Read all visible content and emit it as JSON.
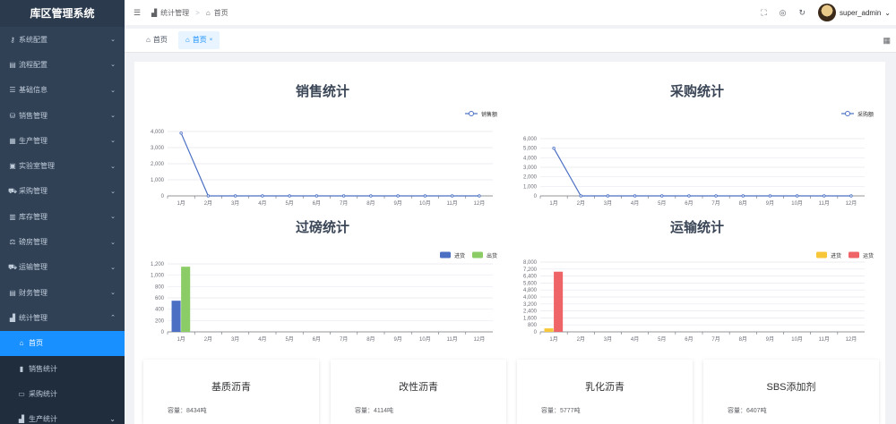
{
  "app_title": "库区管理系统",
  "sidebar": {
    "items": [
      {
        "label": "系统配置",
        "icon": "key-icon"
      },
      {
        "label": "流程配置",
        "icon": "form-icon"
      },
      {
        "label": "基础信息",
        "icon": "list-icon"
      },
      {
        "label": "销售管理",
        "icon": "cart-icon"
      },
      {
        "label": "生产管理",
        "icon": "factory-icon"
      },
      {
        "label": "实验室管理",
        "icon": "flask-icon"
      },
      {
        "label": "采购管理",
        "icon": "shopping-icon"
      },
      {
        "label": "库存管理",
        "icon": "warehouse-icon"
      },
      {
        "label": "磅房管理",
        "icon": "scale-icon"
      },
      {
        "label": "运输管理",
        "icon": "truck-icon"
      },
      {
        "label": "财务管理",
        "icon": "money-icon"
      },
      {
        "label": "统计管理",
        "icon": "chart-icon"
      }
    ],
    "sub_items": [
      {
        "label": "首页",
        "icon": "home-icon"
      },
      {
        "label": "销售统计",
        "icon": "bar-chart-icon"
      },
      {
        "label": "采购统计",
        "icon": "monitor-icon"
      },
      {
        "label": "生产统计",
        "icon": "chart-icon"
      }
    ]
  },
  "navbar": {
    "breadcrumb": [
      "统计管理",
      "首页"
    ],
    "username": "super_admin"
  },
  "tags": [
    "首页",
    "首页"
  ],
  "months": [
    "1月",
    "2月",
    "3月",
    "4月",
    "5月",
    "6月",
    "7月",
    "8月",
    "9月",
    "10月",
    "11月",
    "12月"
  ],
  "chart_data": [
    {
      "type": "line",
      "title": "销售统计",
      "categories": [
        "1月",
        "2月",
        "3月",
        "4月",
        "5月",
        "6月",
        "7月",
        "8月",
        "9月",
        "10月",
        "11月",
        "12月"
      ],
      "series": [
        {
          "name": "销售额",
          "values": [
            3900,
            0,
            0,
            0,
            0,
            0,
            0,
            0,
            0,
            0,
            0,
            0
          ],
          "color": "#4a6fc3"
        }
      ],
      "yticks": [
        "0",
        "1,000",
        "2,000",
        "3,000",
        "4,000"
      ],
      "ylim": [
        0,
        4000
      ],
      "legend": "top-right"
    },
    {
      "type": "line",
      "title": "采购统计",
      "categories": [
        "1月",
        "2月",
        "3月",
        "4月",
        "5月",
        "6月",
        "7月",
        "8月",
        "9月",
        "10月",
        "11月",
        "12月"
      ],
      "series": [
        {
          "name": "采购额",
          "values": [
            5000,
            0,
            0,
            0,
            0,
            0,
            0,
            0,
            0,
            0,
            0,
            0
          ],
          "color": "#4a6fc3"
        }
      ],
      "yticks": [
        "0",
        "1,000",
        "2,000",
        "3,000",
        "4,000",
        "5,000",
        "6,000"
      ],
      "ylim": [
        0,
        6000
      ],
      "legend": "top-right"
    },
    {
      "type": "bar",
      "title": "过磅统计",
      "categories": [
        "1月",
        "2月",
        "3月",
        "4月",
        "5月",
        "6月",
        "7月",
        "8月",
        "9月",
        "10月",
        "11月",
        "12月"
      ],
      "series": [
        {
          "name": "进货",
          "values": [
            550,
            0,
            0,
            0,
            0,
            0,
            0,
            0,
            0,
            0,
            0,
            0
          ],
          "color": "#4a6fc3"
        },
        {
          "name": "出货",
          "values": [
            1150,
            0,
            0,
            0,
            0,
            0,
            0,
            0,
            0,
            0,
            0,
            0
          ],
          "color": "#8ccc67"
        }
      ],
      "yticks": [
        "0",
        "200",
        "400",
        "600",
        "800",
        "1,000",
        "1,200"
      ],
      "ylim": [
        0,
        1200
      ],
      "legend": "top-right"
    },
    {
      "type": "bar",
      "title": "运输统计",
      "categories": [
        "1月",
        "2月",
        "3月",
        "4月",
        "5月",
        "6月",
        "7月",
        "8月",
        "9月",
        "10月",
        "11月",
        "12月"
      ],
      "series": [
        {
          "name": "进货",
          "values": [
            400,
            0,
            0,
            0,
            0,
            0,
            0,
            0,
            0,
            0,
            0,
            0
          ],
          "color": "#f8c639"
        },
        {
          "name": "运货",
          "values": [
            6900,
            0,
            0,
            0,
            0,
            0,
            0,
            0,
            0,
            0,
            0,
            0
          ],
          "color": "#ef6466"
        }
      ],
      "yticks": [
        "0",
        "800",
        "1,600",
        "2,400",
        "3,200",
        "4,000",
        "4,800",
        "5,600",
        "6,400",
        "7,200",
        "8,000"
      ],
      "ylim": [
        0,
        8000
      ],
      "legend": "top-right"
    }
  ],
  "cards": [
    {
      "title": "基质沥青",
      "capacity": "容量：8434吨"
    },
    {
      "title": "改性沥青",
      "capacity": "容量：4114吨"
    },
    {
      "title": "乳化沥青",
      "capacity": "容量：5777吨"
    },
    {
      "title": "SBS添加剂",
      "capacity": "容量：6407吨"
    }
  ]
}
